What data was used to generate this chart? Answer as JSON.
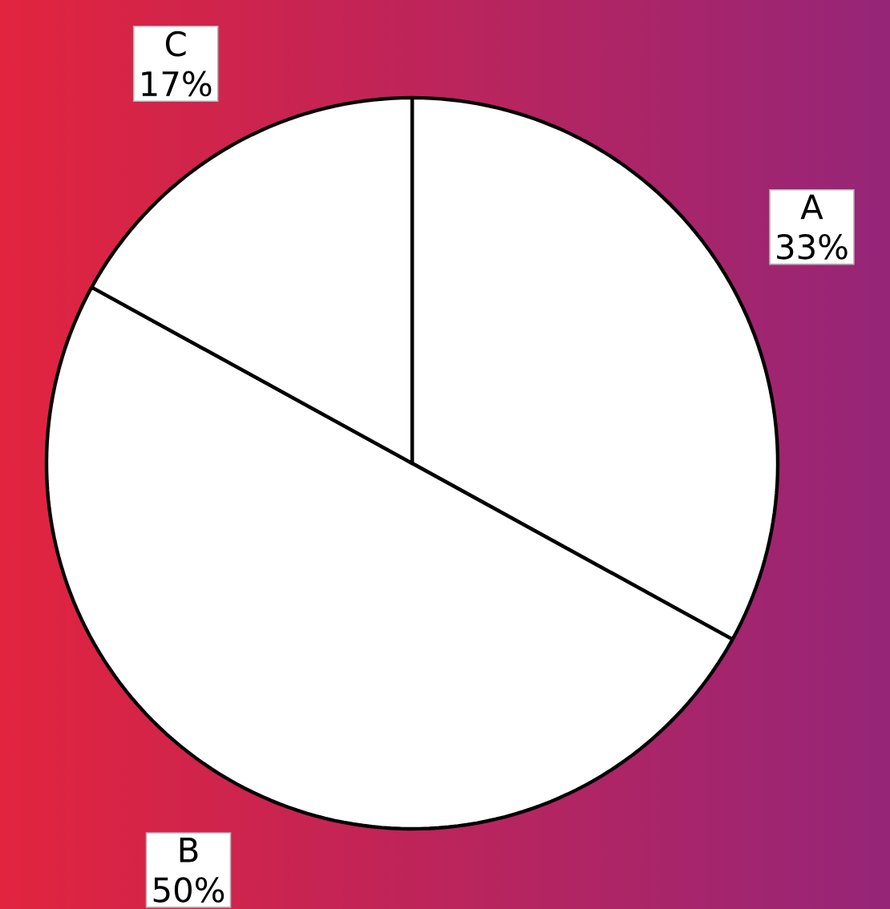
{
  "chart_data": {
    "type": "pie",
    "categories": [
      "A",
      "B",
      "C"
    ],
    "values": [
      33,
      50,
      17
    ],
    "colors": [
      "#ffffff",
      "#ffffff",
      "#ffffff"
    ],
    "value_labels": [
      "33%",
      "50%",
      "17%"
    ]
  }
}
